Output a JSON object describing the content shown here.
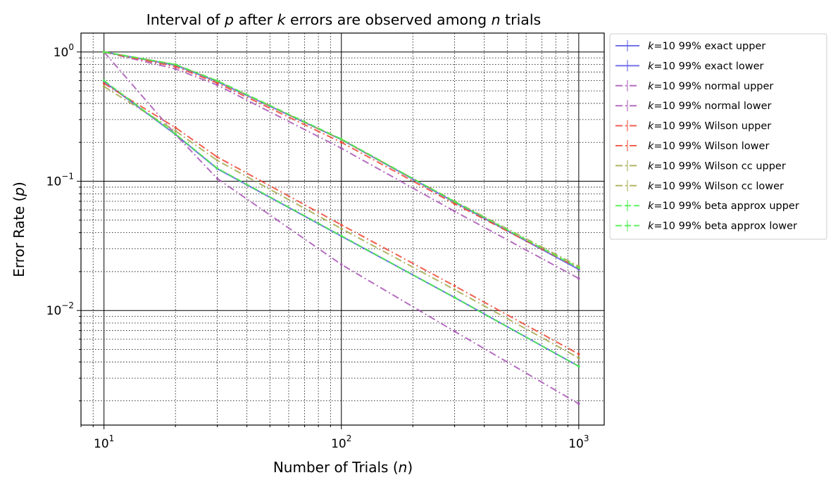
{
  "chart_data": {
    "type": "line",
    "title": {
      "prefix": "Interval of ",
      "p": "p",
      "middle1": " after ",
      "k": "k",
      "middle2": " errors are observed among ",
      "n": "n",
      "suffix": " trials"
    },
    "xlabel": {
      "text": "Number of Trials (",
      "var": "n",
      "close": ")"
    },
    "ylabel": {
      "text": "Error Rate (",
      "var": "p",
      "close": ")"
    },
    "x_scale": "log",
    "y_scale": "log",
    "xlim": [
      8,
      1280
    ],
    "ylim": [
      0.0013,
      1.4
    ],
    "x_ticks": [
      {
        "base": "10",
        "exp": "1",
        "value": 10
      },
      {
        "base": "10",
        "exp": "2",
        "value": 100
      },
      {
        "base": "10",
        "exp": "3",
        "value": 1000
      }
    ],
    "y_ticks": [
      {
        "base": "10",
        "exp": "0",
        "value": 1
      },
      {
        "base": "10",
        "exp": "−1",
        "value": 0.1
      },
      {
        "base": "10",
        "exp": "−2",
        "value": 0.01
      }
    ],
    "grid": {
      "major": true,
      "minor": true
    },
    "legend_position": "outside-right",
    "x": [
      10,
      20,
      30,
      100,
      300,
      1000
    ],
    "series": [
      {
        "name": "99% exact upper",
        "k_label": "k",
        "k_value": "=10",
        "color": "#5b5be6",
        "dash": "solid",
        "values": [
          1.0,
          0.79,
          0.59,
          0.21,
          0.0688,
          0.0208
        ]
      },
      {
        "name": "99% exact lower",
        "k_label": "k",
        "k_value": "=10",
        "color": "#5b5be6",
        "dash": "solid",
        "values": [
          0.59,
          0.23,
          0.125,
          0.0376,
          0.0126,
          0.0037
        ]
      },
      {
        "name": "99% normal upper",
        "k_label": "k",
        "k_value": "=10",
        "color": "#a855b5",
        "dash": "dashdot",
        "values": [
          1.0,
          0.74,
          0.555,
          0.18,
          0.0585,
          0.0177
        ]
      },
      {
        "name": "99% normal lower",
        "k_label": "k",
        "k_value": "=10",
        "color": "#a855b5",
        "dash": "dashdot",
        "values": [
          1.0,
          0.23,
          0.105,
          0.0227,
          0.0069,
          0.0019
        ]
      },
      {
        "name": "99% Wilson upper",
        "k_label": "k",
        "k_value": "=10",
        "color": "#ee4433",
        "dash": "dashdot",
        "values": [
          1.0,
          0.77,
          0.575,
          0.2,
          0.0669,
          0.0213
        ]
      },
      {
        "name": "99% Wilson lower",
        "k_label": "k",
        "k_value": "=10",
        "color": "#ee4433",
        "dash": "dashdot",
        "values": [
          0.57,
          0.26,
          0.154,
          0.046,
          0.0155,
          0.0046
        ]
      },
      {
        "name": "99% Wilson cc upper",
        "k_label": "k",
        "k_value": "=10",
        "color": "#a3a84a",
        "dash": "dashdot",
        "values": [
          1.0,
          0.8,
          0.595,
          0.21,
          0.07,
          0.022
        ]
      },
      {
        "name": "99% Wilson cc lower",
        "k_label": "k",
        "k_value": "=10",
        "color": "#a3a84a",
        "dash": "dashdot",
        "values": [
          0.54,
          0.245,
          0.145,
          0.043,
          0.0145,
          0.0043
        ]
      },
      {
        "name": "99% beta approx upper",
        "k_label": "k",
        "k_value": "=10",
        "color": "#44ee44",
        "dash": "dashed",
        "values": [
          1.0,
          0.8,
          0.6,
          0.212,
          0.0695,
          0.0214
        ]
      },
      {
        "name": "99% beta approx lower",
        "k_label": "k",
        "k_value": "=10",
        "color": "#44ee44",
        "dash": "dashed",
        "values": [
          0.6,
          0.232,
          0.126,
          0.0378,
          0.0126,
          0.0037
        ]
      }
    ]
  }
}
